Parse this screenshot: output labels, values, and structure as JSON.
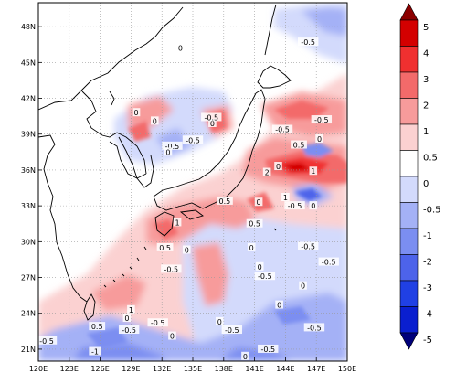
{
  "map": {
    "lon_min": 120,
    "lon_max": 150,
    "lat_min": 20,
    "lat_max": 50,
    "x_ticks": [
      "120E",
      "123E",
      "126E",
      "129E",
      "132E",
      "135E",
      "138E",
      "141E",
      "144E",
      "147E",
      "150E"
    ],
    "y_ticks": [
      "21N",
      "24N",
      "27N",
      "30N",
      "33N",
      "36N",
      "39N",
      "42N",
      "45N",
      "48N"
    ],
    "grid": "dotted"
  },
  "colorbar": {
    "levels": [
      "5",
      "4",
      "3",
      "2",
      "1",
      "0.5",
      "0",
      "-0.5",
      "-1",
      "-2",
      "-3",
      "-4",
      "-5"
    ],
    "colors": [
      "#8b0000",
      "#d40000",
      "#f03030",
      "#f36a6a",
      "#f79b9b",
      "#fbd1d1",
      "#ffffff",
      "#d3dafc",
      "#a4b1f6",
      "#7b8ef1",
      "#4d63ea",
      "#2040e4",
      "#0a1fcf"
    ],
    "top_arrow_color": "#8b0000",
    "bottom_arrow_color": "#00007a"
  },
  "contour_labels": [
    {
      "t": "0",
      "lon": 133.8,
      "lat": 46.2
    },
    {
      "t": "-0.5",
      "lon": 146.2,
      "lat": 46.7
    },
    {
      "t": "0",
      "lon": 129.5,
      "lat": 40.8
    },
    {
      "t": "0",
      "lon": 131.3,
      "lat": 40.1
    },
    {
      "t": "0",
      "lon": 136.9,
      "lat": 39.9
    },
    {
      "t": "-0.5",
      "lon": 136.8,
      "lat": 40.4
    },
    {
      "t": "-0.5",
      "lon": 133.0,
      "lat": 38.0
    },
    {
      "t": "0",
      "lon": 132.6,
      "lat": 37.5
    },
    {
      "t": "-0.5",
      "lon": 135.0,
      "lat": 38.5
    },
    {
      "t": "-0.5",
      "lon": 143.7,
      "lat": 39.4
    },
    {
      "t": "0.5",
      "lon": 145.3,
      "lat": 38.1
    },
    {
      "t": "-0.5",
      "lon": 147.5,
      "lat": 40.2
    },
    {
      "t": "0",
      "lon": 147.3,
      "lat": 38.6
    },
    {
      "t": "0",
      "lon": 143.3,
      "lat": 36.3
    },
    {
      "t": "2",
      "lon": 142.2,
      "lat": 35.8
    },
    {
      "t": "1",
      "lon": 146.7,
      "lat": 35.9
    },
    {
      "t": "0.5",
      "lon": 138.1,
      "lat": 33.4
    },
    {
      "t": "1",
      "lon": 144.0,
      "lat": 33.7
    },
    {
      "t": "-0.5",
      "lon": 144.9,
      "lat": 33.0
    },
    {
      "t": "0",
      "lon": 141.4,
      "lat": 33.3
    },
    {
      "t": "0",
      "lon": 146.7,
      "lat": 33.0
    },
    {
      "t": "1",
      "lon": 133.5,
      "lat": 31.6
    },
    {
      "t": "0.5",
      "lon": 141.0,
      "lat": 31.5
    },
    {
      "t": "0.5",
      "lon": 132.3,
      "lat": 29.5
    },
    {
      "t": "0",
      "lon": 134.4,
      "lat": 29.3
    },
    {
      "t": "0",
      "lon": 140.7,
      "lat": 29.5
    },
    {
      "t": "-0.5",
      "lon": 146.2,
      "lat": 29.6
    },
    {
      "t": "-0.5",
      "lon": 148.2,
      "lat": 28.3
    },
    {
      "t": "0",
      "lon": 141.5,
      "lat": 27.9
    },
    {
      "t": "-0.5",
      "lon": 132.9,
      "lat": 27.7
    },
    {
      "t": "-0.5",
      "lon": 142.0,
      "lat": 27.1
    },
    {
      "t": "0",
      "lon": 145.7,
      "lat": 26.3
    },
    {
      "t": "0",
      "lon": 143.4,
      "lat": 24.7
    },
    {
      "t": "1",
      "lon": 129.0,
      "lat": 24.3
    },
    {
      "t": "0",
      "lon": 128.6,
      "lat": 23.6
    },
    {
      "t": "-0.5",
      "lon": 131.6,
      "lat": 23.2
    },
    {
      "t": "0.5",
      "lon": 125.7,
      "lat": 22.9
    },
    {
      "t": "-0.5",
      "lon": 128.8,
      "lat": 22.6
    },
    {
      "t": "0",
      "lon": 137.6,
      "lat": 23.3
    },
    {
      "t": "-0.5",
      "lon": 138.8,
      "lat": 22.6
    },
    {
      "t": "-0.5",
      "lon": 146.8,
      "lat": 22.8
    },
    {
      "t": "0",
      "lon": 133.0,
      "lat": 22.1
    },
    {
      "t": "-1",
      "lon": 125.5,
      "lat": 20.8
    },
    {
      "t": "-0.5",
      "lon": 142.3,
      "lat": 21.0
    },
    {
      "t": "0",
      "lon": 140.1,
      "lat": 20.4
    },
    {
      "t": "-0.5",
      "lon": 120.8,
      "lat": 21.7
    }
  ]
}
